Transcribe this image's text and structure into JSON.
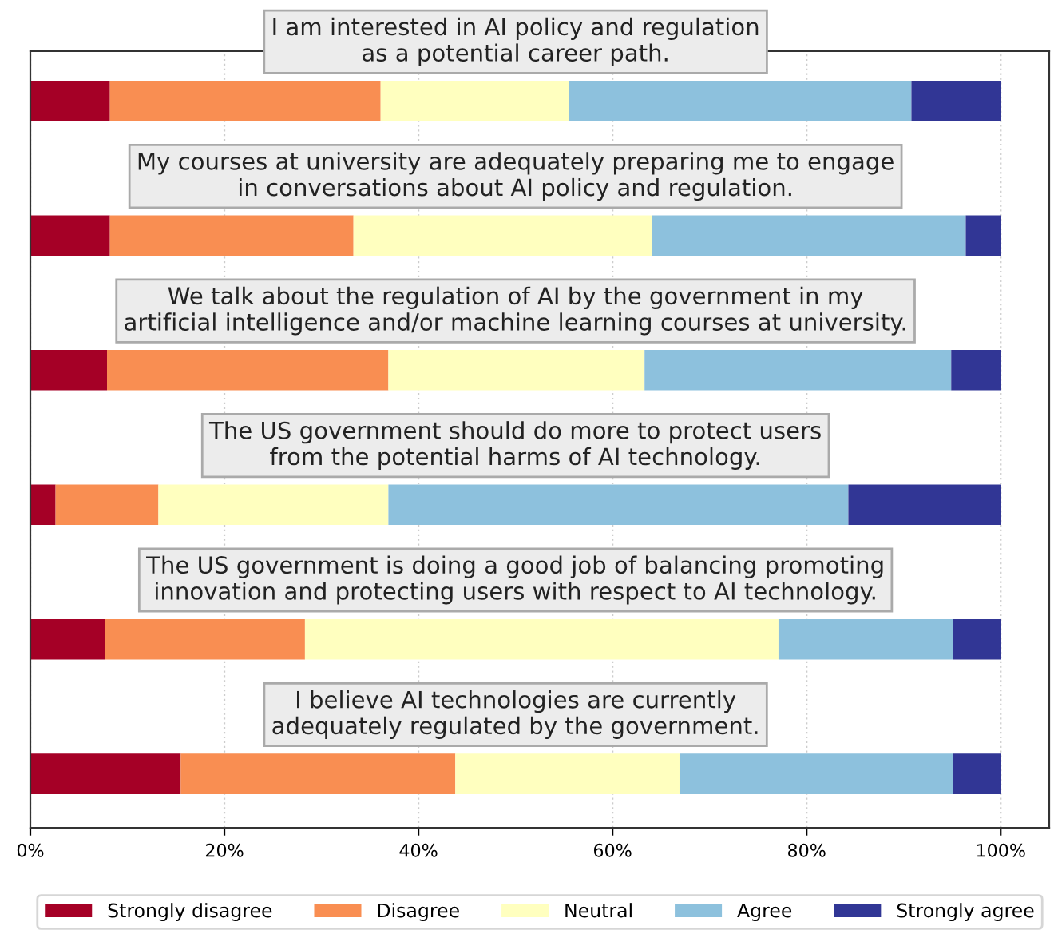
{
  "chart_data": {
    "type": "bar",
    "orientation": "horizontal",
    "stacked": true,
    "categories": [
      "I am interested in AI policy and regulation\nas a potential career path.",
      "My courses at university are adequately preparing me to engage\nin conversations about AI policy and regulation.",
      "We talk about the regulation of AI by the government in my\nartificial intelligence and/or machine learning courses at university.",
      "The US government should do more to protect users\nfrom the potential harms of AI technology.",
      "The US government is doing a good job of balancing promoting\ninnovation and protecting users with respect to AI technology.",
      "I believe AI technologies are currently\nadequately regulated by the government."
    ],
    "series": [
      {
        "name": "Strongly disagree",
        "color": "#a50026",
        "values": [
          8.2,
          8.2,
          7.9,
          2.6,
          7.7,
          15.5
        ]
      },
      {
        "name": "Disagree",
        "color": "#f98e52",
        "values": [
          27.9,
          25.1,
          29.0,
          10.6,
          20.6,
          28.3
        ]
      },
      {
        "name": "Neutral",
        "color": "#ffffbf",
        "values": [
          19.4,
          30.8,
          26.4,
          23.7,
          48.8,
          23.1
        ]
      },
      {
        "name": "Agree",
        "color": "#8dc1dd",
        "values": [
          35.3,
          32.3,
          31.6,
          47.4,
          18.0,
          28.2
        ]
      },
      {
        "name": "Strongly agree",
        "color": "#313695",
        "values": [
          9.2,
          3.6,
          5.1,
          15.7,
          4.9,
          4.9
        ]
      }
    ],
    "xlim": [
      0,
      105
    ],
    "xticks": [
      {
        "value": 0,
        "label": "0%"
      },
      {
        "value": 20,
        "label": "20%"
      },
      {
        "value": 40,
        "label": "40%"
      },
      {
        "value": 60,
        "label": "60%"
      },
      {
        "value": 80,
        "label": "80%"
      },
      {
        "value": 100,
        "label": "100%"
      }
    ],
    "grid": "x",
    "legend": "bottom"
  }
}
